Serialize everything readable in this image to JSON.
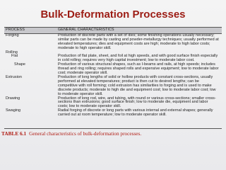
{
  "header": {
    "title": "Bulk-Deformation Processes"
  },
  "table": {
    "columns": [
      "PROCESS",
      "GENERAL CHARACTERISTICS"
    ],
    "rows": [
      {
        "process": "Forging",
        "characteristics": "Production of discrete parts with a set of dies; some finishing operations usually necessary; similar parts can be made by casting and powder-metallurgy techniques; usually performed at elevated temperatures; dies and equipment costs are high; moderate to high labor costs; moderate to high operator skill."
      },
      {
        "process": "Rolling",
        "subrows": [
          {
            "process": "Flat",
            "characteristics": "Production of flat plate, sheet, and foil at high speeds, and with good surface finish especially in cold rolling; requires very high capital investment; low to moderate labor cost."
          },
          {
            "process": "Shape",
            "characteristics": "Production of various structural shapes, such as I-beams and rails, at high speeds; includes thread and ring rolling; requires shaped rolls and expensive equipment; low to moderate labor cost; moderate operator skill."
          }
        ]
      },
      {
        "process": "Extrusion",
        "characteristics": "Production of long lengths of solid or hollow products with constant cross-sections, usually performed at elevated temperatures; product is then cut to desired lengths; can be competitive with roll forming; cold extrusion has similarities to forging and is used to make discrete products; moderate to high die and equipment cost; low to moderate labor cost; low to moderate operator skill."
      },
      {
        "process": "Drawing",
        "characteristics": "Production of long rod, wire, and tubing, with round or various cross-sections; smaller cross-sections than extrusions; good surface finish; low to moderate die, equipment and labor costs; low to moderate operator skill."
      },
      {
        "process": "Swaging",
        "characteristics": "Radial forging of discrete or long parts with various internal and external shapes; generally carried out at room temperature; low to moderate operator skill."
      }
    ]
  },
  "caption": {
    "label": "TABLE 6.1",
    "text": "General characteristics of bulk-deformation processes."
  }
}
